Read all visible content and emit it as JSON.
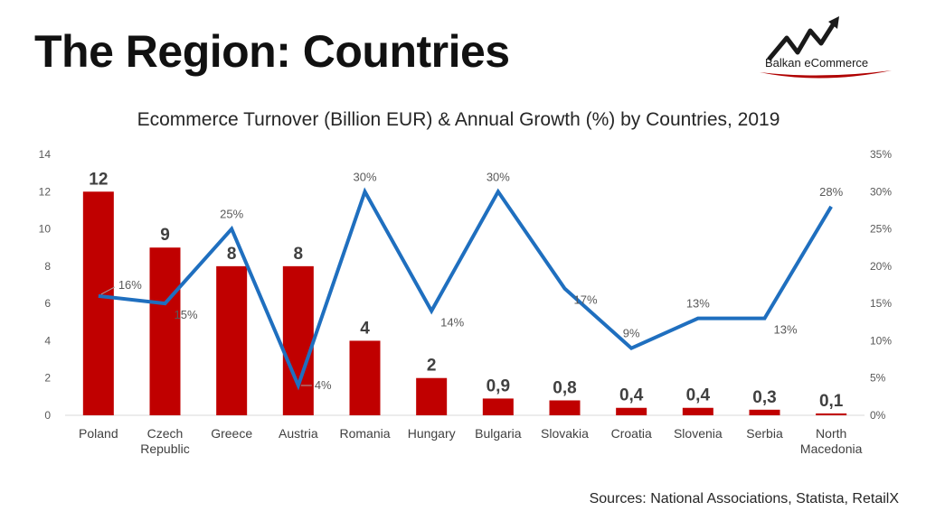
{
  "page": {
    "title": "The Region: Countries",
    "logo_text": "Balkan eCommerce",
    "source": "Sources: National Associations, Statista, RetailX"
  },
  "colors": {
    "bar": "#c00000",
    "line": "#1f6fbf",
    "axis": "#d9d9d9"
  },
  "chart_data": {
    "type": "bar",
    "title": "Ecommerce Turnover (Billion EUR) & Annual Growth (%) by Countries, 2019",
    "categories": [
      [
        "Poland"
      ],
      [
        "Czech",
        "Republic"
      ],
      [
        "Greece"
      ],
      [
        "Austria"
      ],
      [
        "Romania"
      ],
      [
        "Hungary"
      ],
      [
        "Bulgaria"
      ],
      [
        "Slovakia"
      ],
      [
        "Croatia"
      ],
      [
        "Slovenia"
      ],
      [
        "Serbia"
      ],
      [
        "North",
        "Macedonia"
      ]
    ],
    "series": [
      {
        "type": "bar",
        "axis": "left",
        "values": [
          12,
          9,
          8,
          8,
          4,
          2,
          0.9,
          0.8,
          0.4,
          0.4,
          0.3,
          0.1
        ],
        "labels": [
          "12",
          "9",
          "8",
          "8",
          "4",
          "2",
          "0,9",
          "0,8",
          "0,4",
          "0,4",
          "0,3",
          "0,1"
        ]
      },
      {
        "type": "line",
        "axis": "right",
        "values": [
          16,
          15,
          25,
          4,
          30,
          14,
          30,
          17,
          9,
          13,
          13,
          28
        ],
        "labels": [
          "16%",
          "15%",
          "25%",
          "4%",
          "30%",
          "14%",
          "30%",
          "17%",
          "9%",
          "13%",
          "13%",
          "28%"
        ]
      }
    ],
    "y_left": {
      "range": [
        0,
        14
      ],
      "ticks": [
        "0",
        "2",
        "4",
        "6",
        "8",
        "10",
        "12",
        "14"
      ]
    },
    "y_right": {
      "range": [
        0,
        35
      ],
      "ticks": [
        "0%",
        "5%",
        "10%",
        "15%",
        "20%",
        "25%",
        "30%",
        "35%"
      ]
    },
    "grid": false
  }
}
